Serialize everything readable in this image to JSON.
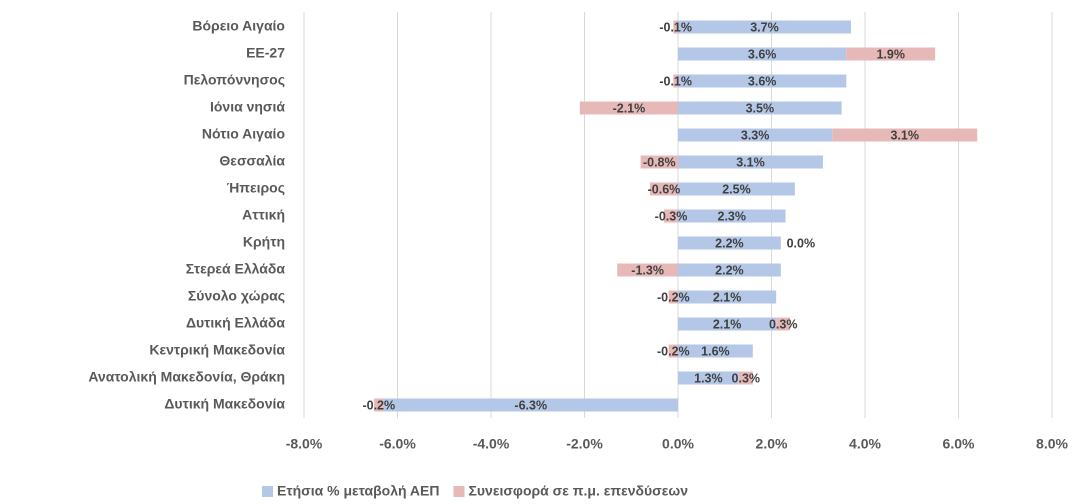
{
  "chart_data": {
    "type": "stacked_barh",
    "categories": [
      "Βόρειο Αιγαίο",
      "ΕΕ-27",
      "Πελοπόννησος",
      "Ιόνια νησιά",
      "Νότιο Αιγαίο",
      "Θεσσαλία",
      "Ήπειρος",
      "Αττική",
      "Κρήτη",
      "Στερεά Ελλάδα",
      "Σύνολο χώρας",
      "Δυτική Ελλάδα",
      "Κεντρική Μακεδονία",
      "Ανατολική Μακεδονία, Θράκη",
      "Δυτική Μακεδονία"
    ],
    "series": [
      {
        "name": "Ετήσια % μεταβολή ΑΕΠ",
        "color": "#b4c7e7",
        "values": [
          3.7,
          3.6,
          3.6,
          3.5,
          3.3,
          3.1,
          2.5,
          2.3,
          2.2,
          2.2,
          2.1,
          2.1,
          1.6,
          1.3,
          -6.3
        ],
        "value_labels": [
          "3.7%",
          "3.6%",
          "3.6%",
          "3.5%",
          "3.3%",
          "3.1%",
          "2.5%",
          "2.3%",
          "2.2%",
          "2.2%",
          "2.1%",
          "2.1%",
          "1.6%",
          "1.3%",
          "-6.3%"
        ]
      },
      {
        "name": "Συνεισφορά σε π.μ. επενδύσεων",
        "color": "#e6b9b8",
        "values": [
          -0.1,
          1.9,
          -0.1,
          -2.1,
          3.1,
          -0.8,
          -0.6,
          -0.3,
          0.0,
          -1.3,
          -0.2,
          0.3,
          -0.2,
          0.3,
          -0.2
        ],
        "value_labels": [
          "-0.1%",
          "1.9%",
          "-0.1%",
          "-2.1%",
          "3.1%",
          "-0.8%",
          "-0.6%",
          "-0.3%",
          "0.0%",
          "-1.3%",
          "-0.2%",
          "0.3%",
          "-0.2%",
          "0.3%",
          "-0.2%"
        ]
      }
    ],
    "xlim": [
      -8,
      8
    ],
    "xticks": [
      {
        "value": -8,
        "label": "-8.0%"
      },
      {
        "value": -6,
        "label": "-6.0%"
      },
      {
        "value": -4,
        "label": "-4.0%"
      },
      {
        "value": -2,
        "label": "-2.0%"
      },
      {
        "value": 0,
        "label": "0.0%"
      },
      {
        "value": 2,
        "label": "2.0%"
      },
      {
        "value": 4,
        "label": "4.0%"
      },
      {
        "value": 6,
        "label": "6.0%"
      },
      {
        "value": 8,
        "label": "8.0%"
      }
    ],
    "grid": true,
    "legend": "bottom"
  }
}
